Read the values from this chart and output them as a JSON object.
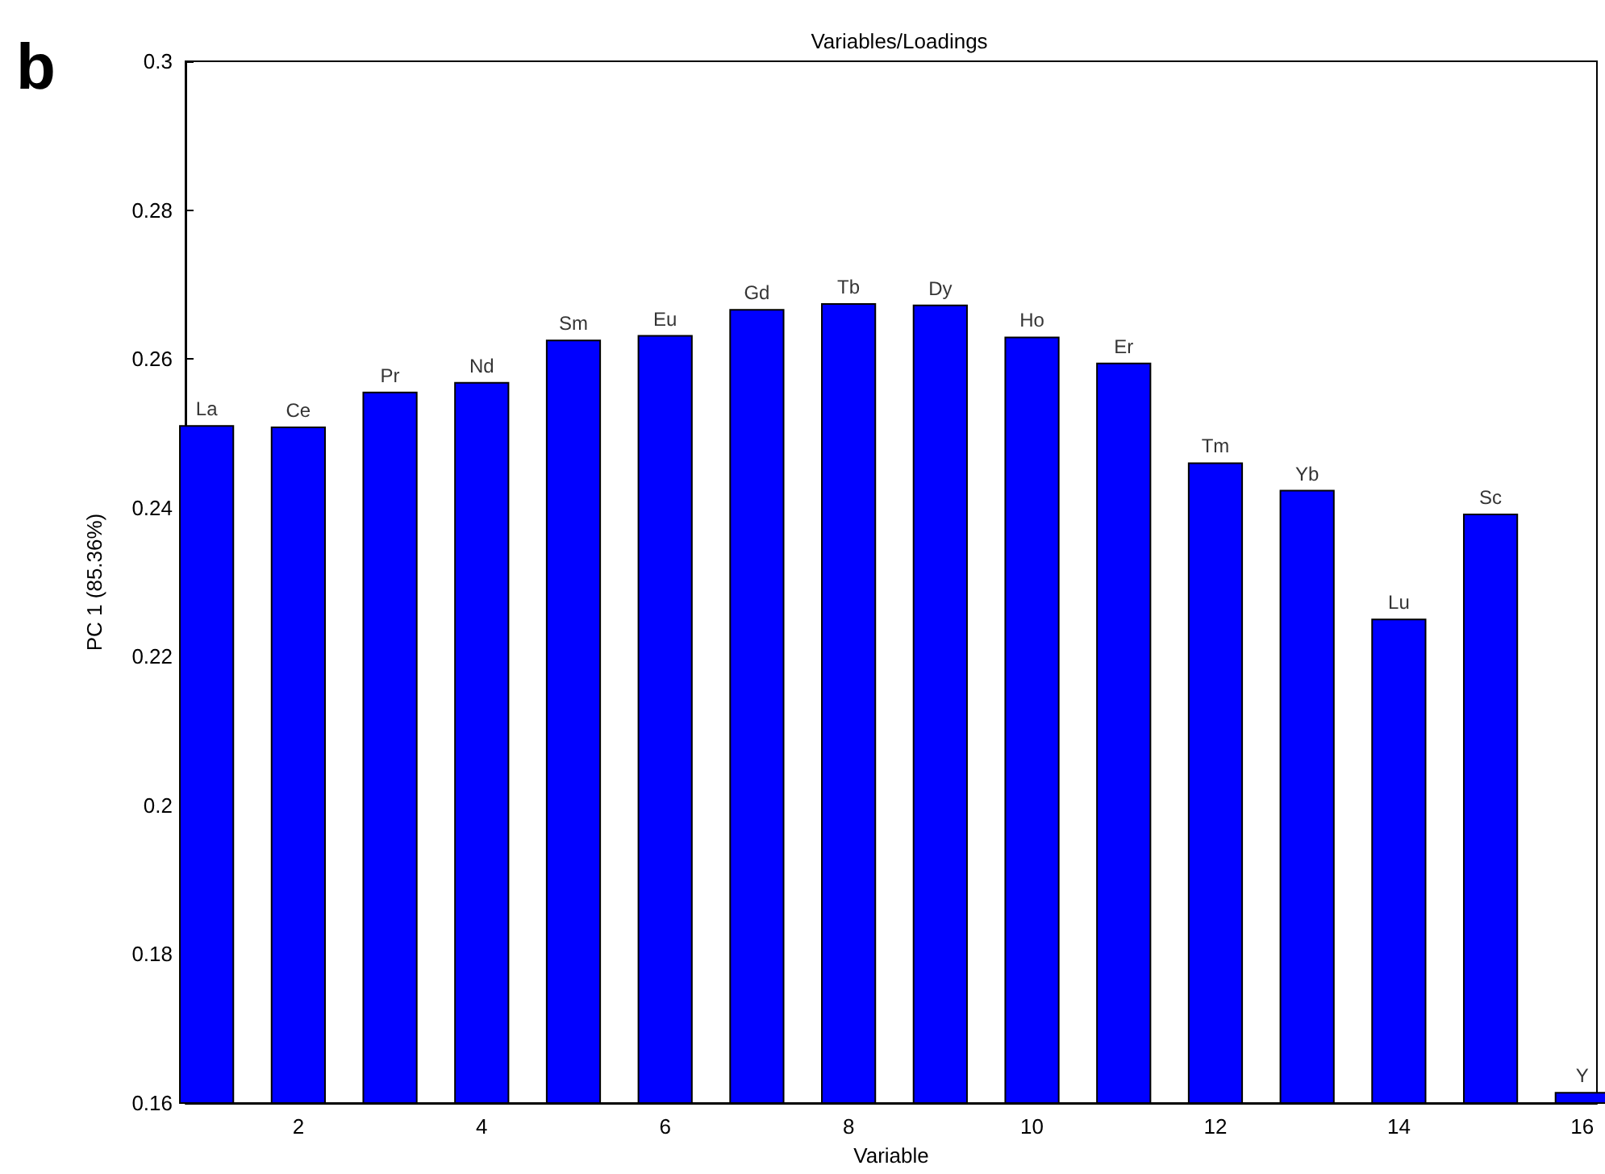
{
  "chart_data": {
    "type": "bar",
    "title": "Variables/Loadings",
    "xlabel": "Variable",
    "ylabel": "PC 1 (85.36%)",
    "x": [
      1,
      2,
      3,
      4,
      5,
      6,
      7,
      8,
      9,
      10,
      11,
      12,
      13,
      14,
      15,
      16
    ],
    "values": [
      0.2511,
      0.2509,
      0.2556,
      0.2569,
      0.2626,
      0.2632,
      0.2667,
      0.2675,
      0.2673,
      0.263,
      0.2595,
      0.2461,
      0.2424,
      0.2251,
      0.2392,
      0.1615
    ],
    "color": "#0000ff",
    "xlim": [
      0.77,
      16.16
    ],
    "xticks": [
      2,
      4,
      6,
      8,
      10,
      12,
      14,
      16
    ],
    "ylim": [
      0.16,
      0.3
    ],
    "yticks": [
      0.16,
      0.18,
      0.2,
      0.22,
      0.24,
      0.26,
      0.28,
      0.3
    ],
    "grid": false,
    "annotations": [
      "b",
      {
        "text": "La",
        "x": 1,
        "y": 0.2511
      },
      {
        "text": "Ce",
        "x": 2,
        "y": 0.2509
      },
      {
        "text": "Pr",
        "x": 3,
        "y": 0.2556
      },
      {
        "text": "Nd",
        "x": 4,
        "y": 0.2569
      },
      {
        "text": "Sm",
        "x": 5,
        "y": 0.2626
      },
      {
        "text": "Eu",
        "x": 6,
        "y": 0.2632
      },
      {
        "text": "Gd",
        "x": 7,
        "y": 0.2667
      },
      {
        "text": "Tb",
        "x": 8,
        "y": 0.2675
      },
      {
        "text": "Dy",
        "x": 9,
        "y": 0.2673
      },
      {
        "text": "Ho",
        "x": 10,
        "y": 0.263
      },
      {
        "text": "Er",
        "x": 11,
        "y": 0.2595
      },
      {
        "text": "Tm",
        "x": 12,
        "y": 0.2461
      },
      {
        "text": "Yb",
        "x": 13,
        "y": 0.2424
      },
      {
        "text": "Lu",
        "x": 14,
        "y": 0.2251
      },
      {
        "text": "Sc",
        "x": 15,
        "y": 0.2392
      },
      {
        "text": "Y",
        "x": 16,
        "y": 0.1615
      }
    ]
  }
}
